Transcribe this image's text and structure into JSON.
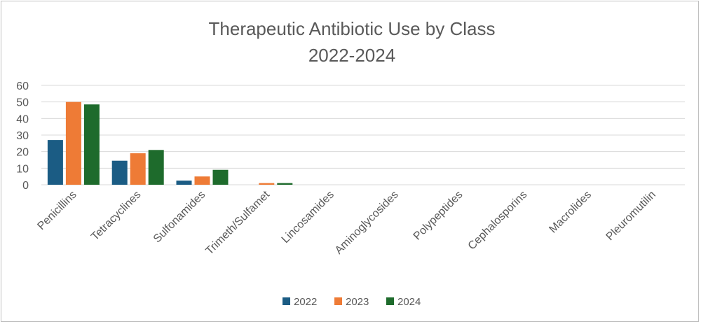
{
  "chart_data": {
    "type": "bar",
    "title": "Therapeutic Antibiotic Use by Class",
    "subtitle": "2022-2024",
    "xlabel": "",
    "ylabel": "",
    "categories": [
      "Penicillins",
      "Tetracyclines",
      "Sulfonamides",
      "Trimeth/Sulfamet",
      "Lincosamides",
      "Aminoglycosides",
      "Polypeptides",
      "Cephalosporins",
      "Macrolides",
      "Pleuromutilin"
    ],
    "series": [
      {
        "name": "2022",
        "color": "#1b5c84",
        "values": [
          27,
          14.5,
          2.5,
          0,
          0,
          0,
          0,
          0,
          0,
          0
        ]
      },
      {
        "name": "2023",
        "color": "#ee7b36",
        "values": [
          50,
          19,
          5,
          1,
          0,
          0,
          0,
          0,
          0,
          0
        ]
      },
      {
        "name": "2024",
        "color": "#1e6b2c",
        "values": [
          48.5,
          21,
          9,
          1,
          0,
          0,
          0,
          0,
          0,
          0
        ]
      }
    ],
    "ylim": [
      0,
      60
    ],
    "yticks": [
      0,
      10,
      20,
      30,
      40,
      50,
      60
    ],
    "grid": true,
    "legend_position": "bottom"
  }
}
